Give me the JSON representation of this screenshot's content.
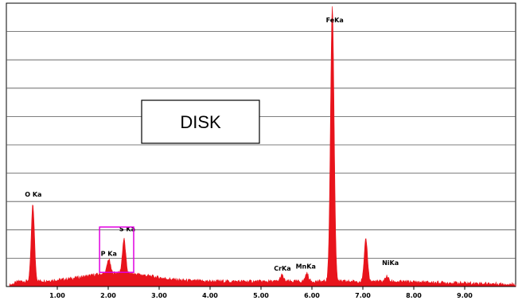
{
  "chart_data": {
    "type": "area",
    "xlim": [
      0,
      10.0
    ],
    "ylim": [
      0,
      10
    ],
    "grid": "horizontal",
    "label_box": "DISK",
    "highlight_box_x": [
      1.83,
      2.5
    ],
    "x_ticks": [
      1.0,
      2.0,
      3.0,
      4.0,
      5.0,
      6.0,
      7.0,
      8.0,
      9.0
    ],
    "x_tick_labels": [
      "1.00",
      "2.00",
      "3.00",
      "4.00",
      "5.00",
      "6.00",
      "7.00",
      "8.00",
      "9.00"
    ],
    "series": [
      {
        "color": "#e8141c",
        "peaks": [
          {
            "label": "O Ka",
            "x": 0.52,
            "height": 2.7
          },
          {
            "label": "P Ka",
            "x": 2.01,
            "height": 0.5
          },
          {
            "label": "S Ka",
            "x": 2.31,
            "height": 1.2
          },
          {
            "label": "CrKa",
            "x": 5.41,
            "height": 0.22
          },
          {
            "label": "MnKa",
            "x": 5.9,
            "height": 0.28
          },
          {
            "label": "FeKa",
            "x": 6.4,
            "height": 9.7
          },
          {
            "label": "",
            "x": 7.06,
            "height": 1.5
          },
          {
            "label": "NiKa",
            "x": 7.47,
            "height": 0.18
          }
        ]
      }
    ]
  }
}
